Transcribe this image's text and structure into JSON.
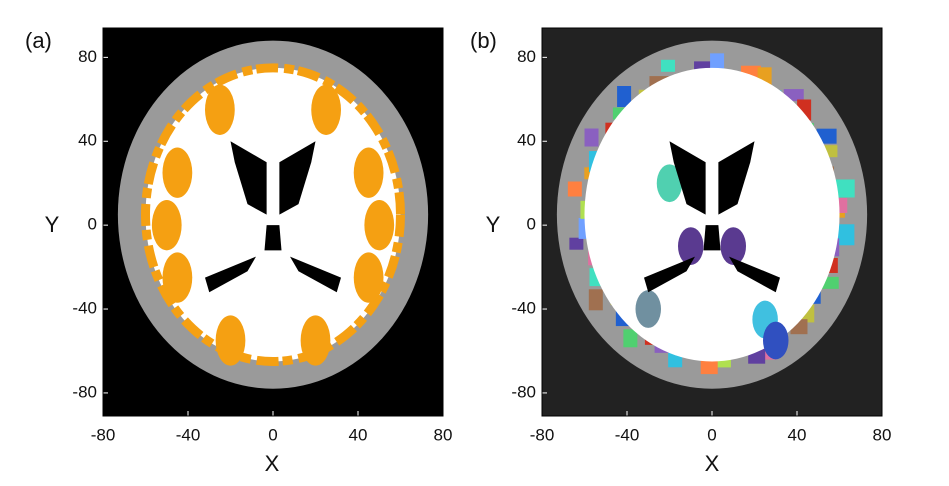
{
  "chart_data": [
    {
      "type": "image",
      "panel_label": "(a)",
      "xlabel": "X",
      "ylabel": "Y",
      "xlim": [
        -80,
        80
      ],
      "ylim": [
        -91,
        94
      ],
      "xticks": [
        -80,
        -40,
        0,
        40,
        80
      ],
      "yticks": [
        -80,
        -40,
        0,
        40,
        80
      ],
      "background": "#000000",
      "parcellation": false
    },
    {
      "type": "image",
      "panel_label": "(b)",
      "xlabel": "X",
      "ylabel": "Y",
      "xlim": [
        -80,
        80
      ],
      "ylim": [
        -91,
        94
      ],
      "xticks": [
        -80,
        -40,
        0,
        40,
        80
      ],
      "yticks": [
        -80,
        -40,
        0,
        40,
        80
      ],
      "background": "#222222",
      "parcellation": true
    }
  ]
}
